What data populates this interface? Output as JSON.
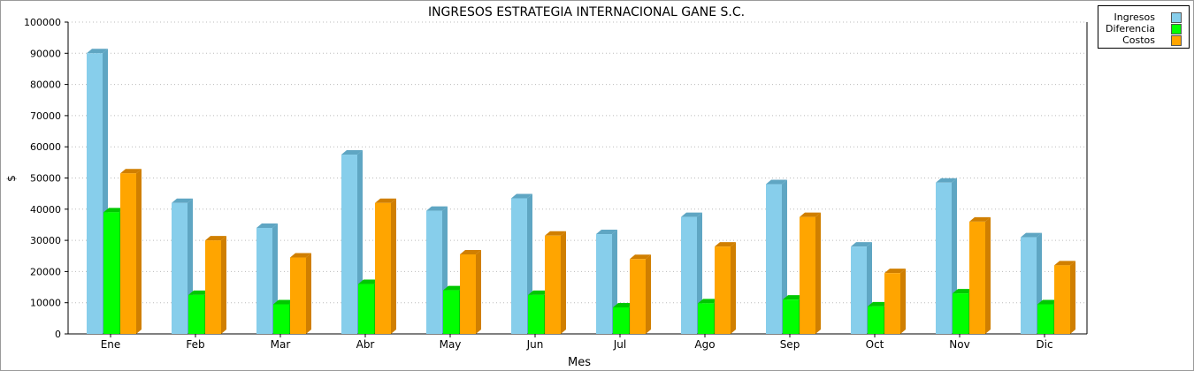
{
  "chart_data": {
    "type": "bar",
    "title": "INGRESOS ESTRATEGIA INTERNACIONAL GANE S.C.",
    "xlabel": "Mes",
    "ylabel": "$",
    "ylim": [
      0,
      100000
    ],
    "yticks": [
      "0",
      "10000",
      "20000",
      "30000",
      "40000",
      "50000",
      "60000",
      "70000",
      "80000",
      "90000",
      "100000"
    ],
    "grid": true,
    "legend_position": "top-right",
    "categories": [
      "Ene",
      "Feb",
      "Mar",
      "Abr",
      "May",
      "Jun",
      "Jul",
      "Ago",
      "Sep",
      "Oct",
      "Nov",
      "Dic"
    ],
    "series": [
      {
        "name": "Ingresos",
        "color": "#87ceeb",
        "side_color": "#5fa6c3",
        "values": [
          90000,
          42000,
          34000,
          57500,
          39500,
          43500,
          32000,
          37500,
          48000,
          28000,
          48500,
          31000
        ]
      },
      {
        "name": "Diferencia",
        "color": "#00ff00",
        "side_color": "#00c800",
        "values": [
          39000,
          12500,
          9500,
          16000,
          14000,
          12500,
          8500,
          9800,
          11000,
          8800,
          13000,
          9500
        ]
      },
      {
        "name": "Costos",
        "color": "#ffa500",
        "side_color": "#d07f00",
        "values": [
          51500,
          30000,
          24500,
          42000,
          25500,
          31500,
          24000,
          28000,
          37500,
          19500,
          36000,
          22000
        ]
      }
    ]
  }
}
